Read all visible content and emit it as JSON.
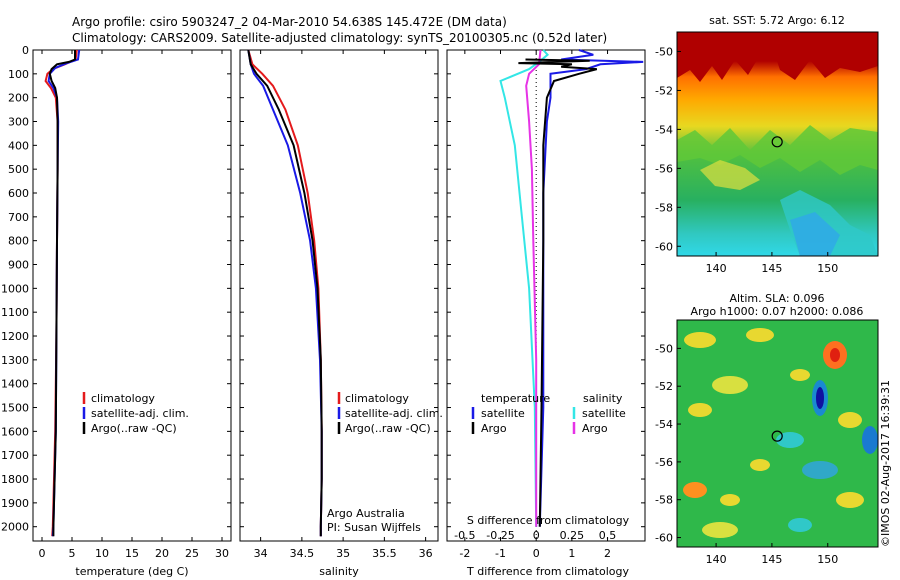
{
  "titles": {
    "line1": "Argo profile: csiro 5903247_2 04-Mar-2010 54.638S 145.472E (DM data)",
    "line2": "Climatology: CARS2009. Satellite-adjusted climatology: synTS_20100305.nc (0.52d later)"
  },
  "credits": {
    "argo": "Argo Australia",
    "pi": "PI: Susan Wijffels",
    "stamp": "©IMOS 02-Aug-2017 16:39:31"
  },
  "colors": {
    "climatology": "#e41a1c",
    "satellite": "#1a1ae6",
    "argo": "#000000",
    "s_satellite": "#33e6e6",
    "s_argo": "#e633e6"
  },
  "chart_data": [
    {
      "type": "line",
      "name": "temperature",
      "title": "",
      "xlabel": "temperature (deg C)",
      "ylabel": "",
      "xlim": [
        -1.5,
        31.5
      ],
      "ylim": [
        2060,
        0
      ],
      "xticks": [
        0,
        5,
        10,
        15,
        20,
        25,
        30
      ],
      "yticks": [
        0,
        100,
        200,
        300,
        400,
        500,
        600,
        700,
        800,
        900,
        1000,
        1100,
        1200,
        1300,
        1400,
        1500,
        1600,
        1700,
        1800,
        1900,
        2000
      ],
      "legend": [
        "climatology",
        "satellite-adj. clim.",
        "Argo(..raw -QC)"
      ],
      "legend_position": "center",
      "series": [
        {
          "name": "climatology",
          "color": "#e41a1c",
          "points": [
            [
              5.8,
              0
            ],
            [
              5.6,
              40
            ],
            [
              3.8,
              60
            ],
            [
              1.8,
              80
            ],
            [
              0.9,
              100
            ],
            [
              0.6,
              130
            ],
            [
              1.5,
              160
            ],
            [
              2.3,
              200
            ],
            [
              2.6,
              300
            ],
            [
              2.6,
              500
            ],
            [
              2.5,
              800
            ],
            [
              2.4,
              1200
            ],
            [
              2.2,
              1600
            ],
            [
              2.0,
              1800
            ],
            [
              1.8,
              2000
            ],
            [
              1.7,
              2040
            ]
          ]
        },
        {
          "name": "satellite-adj. clim.",
          "color": "#1a1ae6",
          "points": [
            [
              6.2,
              0
            ],
            [
              6.0,
              40
            ],
            [
              4.2,
              55
            ],
            [
              2.2,
              75
            ],
            [
              1.3,
              100
            ],
            [
              1.1,
              130
            ],
            [
              1.9,
              160
            ],
            [
              2.5,
              200
            ],
            [
              2.7,
              300
            ],
            [
              2.6,
              500
            ],
            [
              2.5,
              800
            ],
            [
              2.4,
              1200
            ],
            [
              2.3,
              1600
            ],
            [
              2.1,
              1800
            ],
            [
              1.9,
              2000
            ],
            [
              1.8,
              2040
            ]
          ]
        },
        {
          "name": "Argo(..raw -QC)",
          "color": "#000000",
          "points": [
            [
              5.5,
              0
            ],
            [
              5.5,
              40
            ],
            [
              4.5,
              50
            ],
            [
              2.5,
              60
            ],
            [
              1.6,
              80
            ],
            [
              1.3,
              100
            ],
            [
              1.6,
              130
            ],
            [
              2.2,
              160
            ],
            [
              2.5,
              200
            ],
            [
              2.6,
              300
            ],
            [
              2.6,
              500
            ],
            [
              2.5,
              800
            ],
            [
              2.4,
              1200
            ],
            [
              2.3,
              1600
            ],
            [
              2.1,
              1800
            ],
            [
              1.9,
              2000
            ],
            [
              1.9,
              2040
            ]
          ]
        }
      ]
    },
    {
      "type": "line",
      "name": "salinity",
      "title": "",
      "xlabel": "salinity",
      "ylabel": "",
      "xlim": [
        33.75,
        36.15
      ],
      "ylim": [
        2060,
        0
      ],
      "xticks": [
        34,
        34.5,
        35,
        35.5,
        36
      ],
      "legend": [
        "climatology",
        "satellite-adj. clim.",
        "Argo(..raw -QC)"
      ],
      "legend_position": "center",
      "series": [
        {
          "name": "climatology",
          "color": "#e41a1c",
          "points": [
            [
              33.85,
              0
            ],
            [
              33.9,
              60
            ],
            [
              34.02,
              100
            ],
            [
              34.15,
              150
            ],
            [
              34.3,
              250
            ],
            [
              34.45,
              400
            ],
            [
              34.57,
              600
            ],
            [
              34.65,
              800
            ],
            [
              34.7,
              1000
            ],
            [
              34.73,
              1300
            ],
            [
              34.74,
              1600
            ],
            [
              34.74,
              1800
            ],
            [
              34.73,
              2000
            ],
            [
              34.73,
              2040
            ]
          ]
        },
        {
          "name": "satellite-adj. clim.",
          "color": "#1a1ae6",
          "points": [
            [
              33.85,
              0
            ],
            [
              33.88,
              60
            ],
            [
              33.92,
              100
            ],
            [
              34.03,
              150
            ],
            [
              34.15,
              250
            ],
            [
              34.33,
              400
            ],
            [
              34.48,
              600
            ],
            [
              34.6,
              800
            ],
            [
              34.67,
              1000
            ],
            [
              34.72,
              1300
            ],
            [
              34.74,
              1600
            ],
            [
              34.74,
              1800
            ],
            [
              34.73,
              2000
            ],
            [
              34.73,
              2040
            ]
          ]
        },
        {
          "name": "Argo(..raw -QC)",
          "color": "#000000",
          "points": [
            [
              33.85,
              0
            ],
            [
              33.88,
              60
            ],
            [
              33.95,
              100
            ],
            [
              34.08,
              150
            ],
            [
              34.22,
              250
            ],
            [
              34.4,
              400
            ],
            [
              34.53,
              600
            ],
            [
              34.63,
              800
            ],
            [
              34.69,
              1000
            ],
            [
              34.73,
              1300
            ],
            [
              34.74,
              1600
            ],
            [
              34.74,
              1800
            ],
            [
              34.73,
              2000
            ],
            [
              34.73,
              2040
            ]
          ]
        }
      ]
    },
    {
      "type": "line",
      "name": "differences",
      "title": "",
      "xlabel": "T difference from climatology",
      "x2label": "S difference from climatology",
      "ylabel": "",
      "xlim": [
        -2.5,
        3.05
      ],
      "x2lim": [
        -0.625,
        0.7625
      ],
      "ylim": [
        2060,
        0
      ],
      "xticks": [
        -2,
        -1,
        0,
        1,
        2
      ],
      "x2ticks": [
        -0.5,
        -0.25,
        0,
        0.25,
        0.5
      ],
      "legend_temperature_title": "temperature",
      "legend_salinity_title": "salinity",
      "legend_temperature": [
        "satellite",
        "Argo"
      ],
      "legend_salinity": [
        "satellite",
        "Argo"
      ],
      "series_temperature": [
        {
          "name": "satellite",
          "color": "#1a1ae6",
          "points": [
            [
              1.2,
              0
            ],
            [
              1.6,
              20
            ],
            [
              0.7,
              40
            ],
            [
              3.0,
              50
            ],
            [
              1.8,
              60
            ],
            [
              1.4,
              80
            ],
            [
              0.4,
              100
            ],
            [
              0.4,
              130
            ],
            [
              0.4,
              200
            ],
            [
              0.3,
              300
            ],
            [
              0.2,
              600
            ],
            [
              0.2,
              1000
            ],
            [
              0.2,
              1500
            ],
            [
              0.1,
              2000
            ]
          ]
        },
        {
          "name": "Argo",
          "color": "#000000",
          "points": [
            [
              -0.3,
              40
            ],
            [
              1.5,
              45
            ],
            [
              -0.5,
              55
            ],
            [
              1.0,
              60
            ],
            [
              0.7,
              70
            ],
            [
              1.7,
              80
            ],
            [
              1.2,
              100
            ],
            [
              0.5,
              130
            ],
            [
              0.3,
              200
            ],
            [
              0.2,
              400
            ],
            [
              0.2,
              800
            ],
            [
              0.15,
              1500
            ],
            [
              0.1,
              2000
            ]
          ]
        }
      ],
      "series_salinity": [
        {
          "name": "satellite",
          "color": "#33e6e6",
          "points": [
            [
              0.05,
              0
            ],
            [
              0.08,
              20
            ],
            [
              0.02,
              50
            ],
            [
              -0.05,
              80
            ],
            [
              -0.25,
              130
            ],
            [
              -0.22,
              200
            ],
            [
              -0.15,
              400
            ],
            [
              -0.1,
              700
            ],
            [
              -0.05,
              1000
            ],
            [
              -0.01,
              1500
            ],
            [
              0.0,
              2000
            ]
          ]
        },
        {
          "name": "Argo",
          "color": "#e633e6",
          "points": [
            [
              0.03,
              0
            ],
            [
              0.02,
              60
            ],
            [
              -0.05,
              100
            ],
            [
              -0.07,
              150
            ],
            [
              -0.05,
              300
            ],
            [
              -0.03,
              500
            ],
            [
              -0.02,
              800
            ],
            [
              0.0,
              1300
            ],
            [
              0.0,
              2000
            ]
          ]
        }
      ]
    },
    {
      "type": "heatmap",
      "name": "sst-map",
      "title": "sat. SST: 5.72  Argo: 6.12",
      "xlim": [
        136.5,
        154.5
      ],
      "ylim": [
        -60.5,
        -49
      ],
      "xticks": [
        140,
        145,
        150
      ],
      "yticks": [
        -50,
        -52,
        -54,
        -56,
        -58,
        -60
      ],
      "marker": {
        "lon": 145.472,
        "lat": -54.638
      }
    },
    {
      "type": "heatmap",
      "name": "sla-map",
      "title": "Altim. SLA: 0.096",
      "subtitle": "Argo h1000: 0.07  h2000: 0.086",
      "xlim": [
        136.5,
        154.5
      ],
      "ylim": [
        -60.5,
        -48.5
      ],
      "xticks": [
        140,
        145,
        150
      ],
      "yticks": [
        -50,
        -52,
        -54,
        -56,
        -58,
        -60
      ],
      "marker": {
        "lon": 145.472,
        "lat": -54.638
      }
    }
  ]
}
